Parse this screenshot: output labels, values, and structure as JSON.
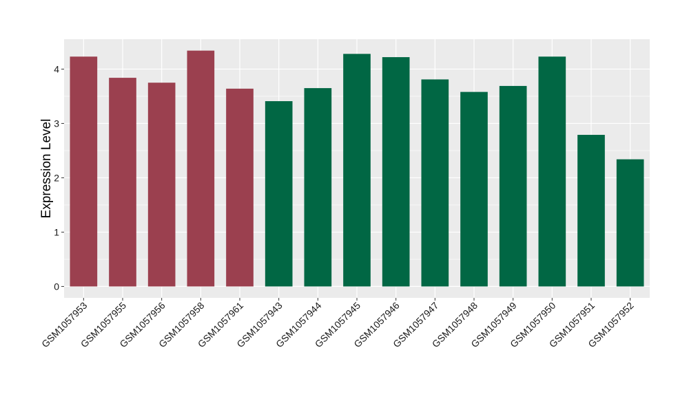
{
  "chart_data": {
    "type": "bar",
    "title": "",
    "xlabel": "",
    "ylabel": "Expression Level",
    "categories": [
      "GSM1057953",
      "GSM1057955",
      "GSM1057956",
      "GSM1057958",
      "GSM1057961",
      "GSM1057943",
      "GSM1057944",
      "GSM1057945",
      "GSM1057946",
      "GSM1057947",
      "GSM1057948",
      "GSM1057949",
      "GSM1057950",
      "GSM1057951",
      "GSM1057952"
    ],
    "values": [
      4.23,
      3.84,
      3.75,
      4.34,
      3.64,
      3.41,
      3.65,
      4.28,
      4.22,
      3.81,
      3.58,
      3.69,
      4.23,
      2.79,
      2.34
    ],
    "groups": [
      0,
      0,
      0,
      0,
      0,
      1,
      1,
      1,
      1,
      1,
      1,
      1,
      1,
      1,
      1
    ],
    "group_colors": [
      "#9b404f",
      "#016744"
    ],
    "ylim": [
      -0.21,
      4.55
    ],
    "yticks": [
      0,
      1,
      2,
      3,
      4
    ],
    "grid": true,
    "legend": "none",
    "panel_color": "#ebebeb",
    "grid_color": "#ffffff"
  }
}
